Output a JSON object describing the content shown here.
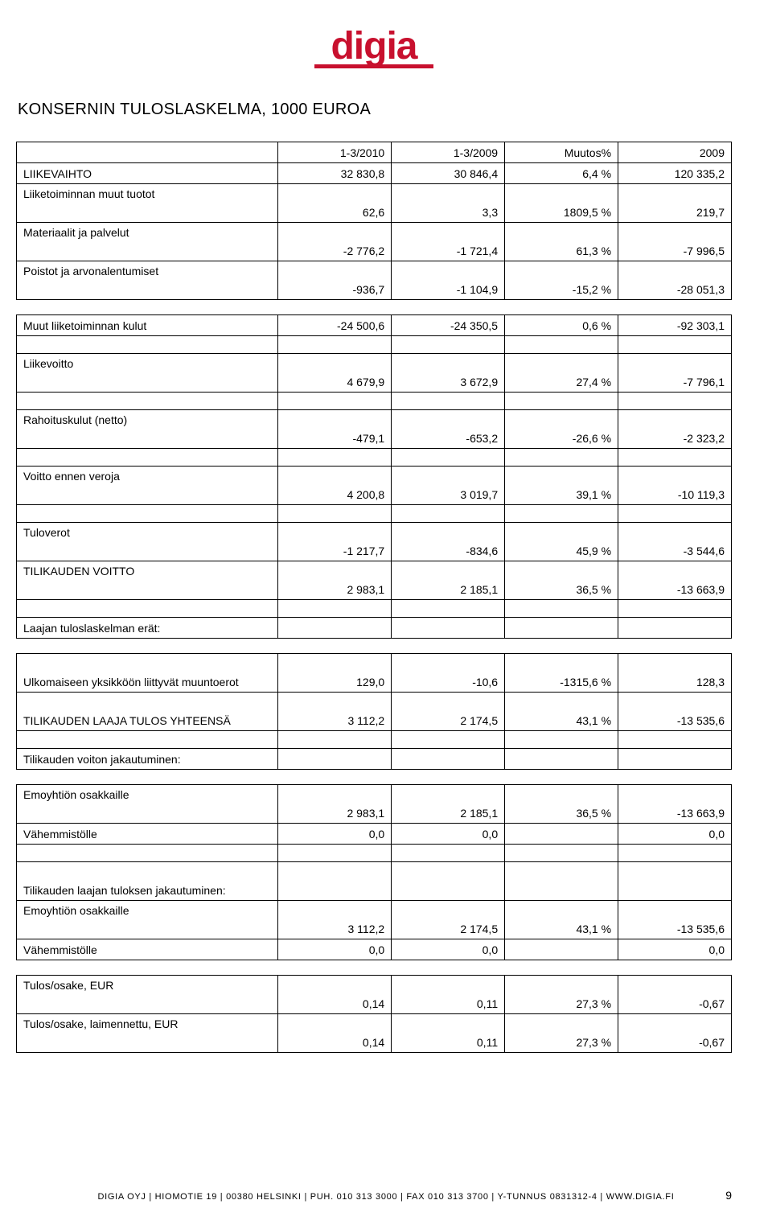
{
  "logo_text": "digia",
  "title": "KONSERNIN TULOSLASKELMA, 1000 EUROA",
  "columns": {
    "c1": "1-3/2010",
    "c2": "1-3/2009",
    "c3": "Muutos%",
    "c4": "2009"
  },
  "rows": {
    "liikevaihto": {
      "label": "LIIKEVAIHTO",
      "c1": "32 830,8",
      "c2": "30 846,4",
      "c3": "6,4 %",
      "c4": "120 335,2"
    },
    "muut_tuotot": {
      "label": "Liiketoiminnan muut tuotot",
      "c1": "62,6",
      "c2": "3,3",
      "c3": "1809,5 %",
      "c4": "219,7"
    },
    "materiaalit": {
      "label": "Materiaalit ja palvelut",
      "c1": "-2 776,2",
      "c2": "-1 721,4",
      "c3": "61,3 %",
      "c4": "-7 996,5"
    },
    "poistot": {
      "label": "Poistot ja arvonalentumiset",
      "c1": "-936,7",
      "c2": "-1 104,9",
      "c3": "-15,2 %",
      "c4": "-28 051,3"
    },
    "muut_kulut": {
      "label": "Muut liiketoiminnan kulut",
      "c1": "-24 500,6",
      "c2": "-24 350,5",
      "c3": "0,6 %",
      "c4": "-92 303,1"
    },
    "liikevoitto": {
      "label": "Liikevoitto",
      "c1": "4 679,9",
      "c2": "3 672,9",
      "c3": "27,4 %",
      "c4": "-7 796,1"
    },
    "rahoituskulut": {
      "label": "Rahoituskulut (netto)",
      "c1": "-479,1",
      "c2": "-653,2",
      "c3": "-26,6 %",
      "c4": "-2 323,2"
    },
    "voitto_ennen": {
      "label": "Voitto ennen veroja",
      "c1": "4 200,8",
      "c2": "3 019,7",
      "c3": "39,1 %",
      "c4": "-10 119,3"
    },
    "tuloverot": {
      "label": "Tuloverot",
      "c1": "-1 217,7",
      "c2": "-834,6",
      "c3": "45,9 %",
      "c4": "-3 544,6"
    },
    "tilikauden_v": {
      "label": "TILIKAUDEN VOITTO",
      "c1": "2 983,1",
      "c2": "2 185,1",
      "c3": "36,5 %",
      "c4": "-13 663,9"
    },
    "laajan_erat": {
      "label": "Laajan tuloslaskelman erät:"
    },
    "ulkomaiseen": {
      "label": "Ulkomaiseen yksikköön liittyvät muuntoerot",
      "c1": "129,0",
      "c2": "-10,6",
      "c3": "-1315,6 %",
      "c4": "128,3"
    },
    "laaja_yht": {
      "label": "TILIKAUDEN LAAJA TULOS YHTEENSÄ",
      "c1": "3 112,2",
      "c2": "2 174,5",
      "c3": "43,1 %",
      "c4": "-13 535,6"
    },
    "voiton_jak": {
      "label": "Tilikauden voiton jakautuminen:"
    },
    "emo1": {
      "label": "Emoyhtiön osakkaille",
      "c1": "2 983,1",
      "c2": "2 185,1",
      "c3": "36,5 %",
      "c4": "-13 663,9"
    },
    "vah1": {
      "label": "Vähemmistölle",
      "c1": "0,0",
      "c2": "0,0",
      "c3": "",
      "c4": "0,0"
    },
    "laajan_jak": {
      "label": "Tilikauden laajan tuloksen jakautuminen:"
    },
    "emo2": {
      "label": "Emoyhtiön osakkaille",
      "c1": "3 112,2",
      "c2": "2 174,5",
      "c3": "43,1 %",
      "c4": "-13 535,6"
    },
    "vah2": {
      "label": "Vähemmistölle",
      "c1": "0,0",
      "c2": "0,0",
      "c3": "",
      "c4": "0,0"
    },
    "tulos_osake": {
      "label": "Tulos/osake, EUR",
      "c1": "0,14",
      "c2": "0,11",
      "c3": "27,3 %",
      "c4": "-0,67"
    },
    "tulos_laim": {
      "label": "Tulos/osake, laimennettu, EUR",
      "c1": "0,14",
      "c2": "0,11",
      "c3": "27,3 %",
      "c4": "-0,67"
    }
  },
  "footer": "DIGIA OYJ | HIOMOTIE 19 | 00380 HELSINKI | PUH. 010 313 3000 | FAX 010 313 3700 | Y-TUNNUS 0831312-4 | WWW.DIGIA.FI",
  "page_number": "9"
}
